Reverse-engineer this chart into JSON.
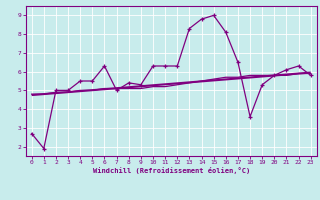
{
  "xlabel": "Windchill (Refroidissement éolien,°C)",
  "bg_color": "#c8ecec",
  "line_color": "#800080",
  "grid_color": "#ffffff",
  "xlim": [
    -0.5,
    23.5
  ],
  "ylim": [
    1.5,
    9.5
  ],
  "yticks": [
    2,
    3,
    4,
    5,
    6,
    7,
    8,
    9
  ],
  "xticks": [
    0,
    1,
    2,
    3,
    4,
    5,
    6,
    7,
    8,
    9,
    10,
    11,
    12,
    13,
    14,
    15,
    16,
    17,
    18,
    19,
    20,
    21,
    22,
    23
  ],
  "series1_x": [
    0,
    1,
    2,
    3,
    4,
    5,
    6,
    7,
    8,
    9,
    10,
    11,
    12,
    13,
    14,
    15,
    16,
    17,
    18,
    19,
    20,
    21,
    22,
    23
  ],
  "series1_y": [
    2.7,
    1.9,
    5.0,
    5.0,
    5.5,
    5.5,
    6.3,
    5.0,
    5.4,
    5.3,
    6.3,
    6.3,
    6.3,
    8.3,
    8.8,
    9.0,
    8.1,
    6.5,
    3.6,
    5.3,
    5.8,
    6.1,
    6.3,
    5.8
  ],
  "series2_x": [
    0,
    1,
    2,
    3,
    4,
    5,
    6,
    7,
    8,
    9,
    10,
    11,
    12,
    13,
    14,
    15,
    16,
    17,
    18,
    19,
    20,
    21,
    22,
    23
  ],
  "series2_y": [
    4.8,
    4.8,
    4.9,
    4.9,
    5.0,
    5.0,
    5.1,
    5.1,
    5.1,
    5.1,
    5.2,
    5.2,
    5.3,
    5.4,
    5.5,
    5.6,
    5.7,
    5.7,
    5.8,
    5.8,
    5.8,
    5.8,
    5.9,
    5.9
  ],
  "series3_x": [
    0,
    23
  ],
  "series3_y": [
    4.75,
    5.95
  ]
}
